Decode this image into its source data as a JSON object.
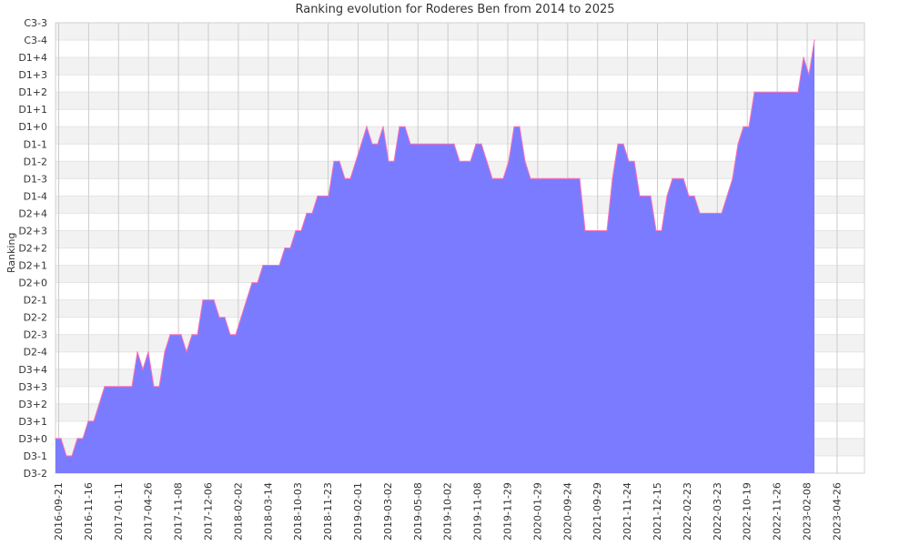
{
  "chart_data": {
    "type": "area",
    "title": "Ranking evolution for Roderes Ben from 2014 to 2025",
    "xlabel": "",
    "ylabel": "Ranking",
    "grid": true,
    "y_ticks": [
      "D3-2",
      "D3-1",
      "D3+0",
      "D3+1",
      "D3+2",
      "D3+3",
      "D3+4",
      "D2-4",
      "D2-3",
      "D2-2",
      "D2-1",
      "D2+0",
      "D2+1",
      "D2+2",
      "D2+3",
      "D2+4",
      "D1-4",
      "D1-3",
      "D1-2",
      "D1-1",
      "D1+0",
      "D1+1",
      "D1+2",
      "D1+3",
      "D1+4",
      "C3-4",
      "C3-3"
    ],
    "x_ticks": [
      "2016-09-21",
      "2016-11-16",
      "2017-01-11",
      "2017-04-26",
      "2017-11-08",
      "2017-12-06",
      "2018-02-02",
      "2018-03-14",
      "2018-10-03",
      "2018-11-23",
      "2019-02-01",
      "2019-03-02",
      "2019-05-08",
      "2019-10-02",
      "2019-11-08",
      "2019-11-29",
      "2020-01-29",
      "2020-09-24",
      "2021-09-29",
      "2021-11-24",
      "2021-12-15",
      "2022-02-23",
      "2022-03-23",
      "2022-10-19",
      "2022-11-26",
      "2023-02-08",
      "2023-04-26"
    ],
    "x_count": 144,
    "colors": {
      "fill": "#7b7bff",
      "line": "#ff6fb5",
      "grid": "#cccccc",
      "band": "#f2f2f2"
    },
    "values": [
      2,
      2,
      1,
      1,
      2,
      2,
      3,
      3,
      4,
      5,
      5,
      5,
      5,
      5,
      5,
      7,
      6,
      7,
      5,
      5,
      7,
      8,
      8,
      8,
      7,
      8,
      8,
      10,
      10,
      10,
      9,
      9,
      8,
      8,
      9,
      10,
      11,
      11,
      12,
      12,
      12,
      12,
      13,
      13,
      14,
      14,
      15,
      15,
      16,
      16,
      16,
      18,
      18,
      17,
      17,
      18,
      19,
      20,
      19,
      19,
      20,
      18,
      18,
      20,
      20,
      19,
      19,
      19,
      19,
      19,
      19,
      19,
      19,
      19,
      18,
      18,
      18,
      19,
      19,
      18,
      17,
      17,
      17,
      18,
      20,
      20,
      18,
      17,
      17,
      17,
      17,
      17,
      17,
      17,
      17,
      17,
      17,
      14,
      14,
      14,
      14,
      14,
      17,
      19,
      19,
      18,
      18,
      16,
      16,
      16,
      14,
      14,
      16,
      17,
      17,
      17,
      16,
      16,
      15,
      15,
      15,
      15,
      15,
      16,
      17,
      19,
      20,
      20,
      22,
      22,
      22,
      22,
      22,
      22,
      22,
      22,
      22,
      24,
      23,
      25
    ]
  }
}
